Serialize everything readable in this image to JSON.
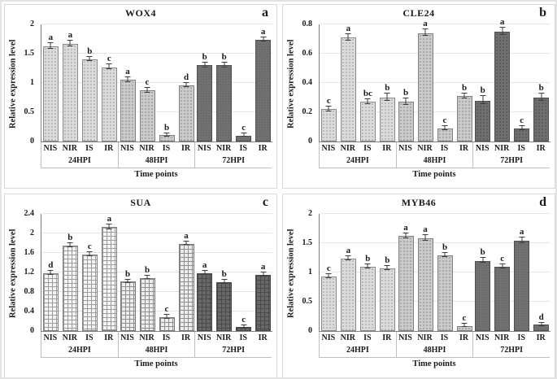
{
  "figure": {
    "xlabel": "Time points",
    "ylabel": "Relative expression level",
    "conditions": [
      "NIS",
      "NIR",
      "IS",
      "IR"
    ],
    "timepoints": [
      "24HPI",
      "48HPI",
      "72HPI"
    ],
    "colors": {
      "light_bar": "#dbdbdb",
      "medium_bar": "#cbcbcb",
      "dark_bar": "#707070",
      "axis": "#808080",
      "gridline": "#e6e6e6",
      "divider": "#bfbfbf",
      "text": "#1a1a1a"
    }
  },
  "chart_data": [
    {
      "type": "bar",
      "panel_letter": "a",
      "title": "WOX4",
      "xlabel": "Time points",
      "ylabel": "Relative expression level",
      "ylim": [
        0,
        2
      ],
      "yticks": [
        "0",
        "0.5",
        "1",
        "1.5",
        "2"
      ],
      "grid": true,
      "conditions": [
        "NIS",
        "NIR",
        "IS",
        "IR"
      ],
      "group_styles": [
        "tex-light-dot",
        "tex-med-dot",
        "tex-dark-solid"
      ],
      "groups": [
        {
          "label": "24HPI",
          "values": [
            1.63,
            1.67,
            1.4,
            1.27
          ],
          "errors": [
            0.04,
            0.04,
            0.03,
            0.03
          ],
          "letters": [
            "a",
            "a",
            "b",
            "c"
          ]
        },
        {
          "label": "48HPI",
          "values": [
            1.05,
            0.87,
            0.11,
            0.96
          ],
          "errors": [
            0.03,
            0.03,
            0.02,
            0.03
          ],
          "letters": [
            "a",
            "c",
            "b",
            "d"
          ]
        },
        {
          "label": "72HPI",
          "values": [
            1.3,
            1.3,
            0.1,
            1.74
          ],
          "errors": [
            0.03,
            0.03,
            0.02,
            0.03
          ],
          "letters": [
            "b",
            "b",
            "c",
            "a"
          ]
        }
      ]
    },
    {
      "type": "bar",
      "panel_letter": "b",
      "title": "CLE24",
      "xlabel": "Time points",
      "ylabel": "Relative expression level",
      "ylim": [
        0,
        0.8
      ],
      "yticks": [
        "0",
        "0.2",
        "0.4",
        "0.6",
        "0.8"
      ],
      "grid": true,
      "conditions": [
        "NIS",
        "NIR",
        "IS",
        "IR"
      ],
      "group_styles": [
        "tex-light-dot",
        "tex-med-dot",
        "tex-dark-dot"
      ],
      "groups": [
        {
          "label": "24HPI",
          "values": [
            0.22,
            0.71,
            0.27,
            0.3
          ],
          "errors": [
            0.015,
            0.02,
            0.015,
            0.02
          ],
          "letters": [
            "c",
            "a",
            "bc",
            "b"
          ]
        },
        {
          "label": "48HPI",
          "values": [
            0.27,
            0.74,
            0.09,
            0.31
          ],
          "errors": [
            0.02,
            0.02,
            0.01,
            0.015
          ],
          "letters": [
            "b",
            "a",
            "c",
            "b"
          ]
        },
        {
          "label": "72HPI",
          "values": [
            0.28,
            0.75,
            0.09,
            0.3
          ],
          "errors": [
            0.025,
            0.02,
            0.01,
            0.02
          ],
          "letters": [
            "b",
            "a",
            "c",
            "b"
          ]
        }
      ]
    },
    {
      "type": "bar",
      "panel_letter": "c",
      "title": "SUA",
      "xlabel": "Time points",
      "ylabel": "Relative expression level",
      "ylim": [
        0,
        2.4
      ],
      "yticks": [
        "0",
        "0.4",
        "0.8",
        "1.2",
        "1.6",
        "2",
        "2.4"
      ],
      "grid": true,
      "conditions": [
        "NIS",
        "NIR",
        "IS",
        "IR"
      ],
      "group_styles": [
        "tex-grid-light",
        "tex-grid-med",
        "tex-grid-dark"
      ],
      "groups": [
        {
          "label": "24HPI",
          "values": [
            1.18,
            1.75,
            1.57,
            2.13
          ],
          "errors": [
            0.03,
            0.04,
            0.03,
            0.04
          ],
          "letters": [
            "d",
            "b",
            "c",
            "a"
          ]
        },
        {
          "label": "48HPI",
          "values": [
            1.01,
            1.09,
            0.28,
            1.79
          ],
          "errors": [
            0.03,
            0.03,
            0.03,
            0.03
          ],
          "letters": [
            "b",
            "b",
            "c",
            "a"
          ]
        },
        {
          "label": "72HPI",
          "values": [
            1.19,
            1.0,
            0.08,
            1.15
          ],
          "errors": [
            0.03,
            0.03,
            0.02,
            0.03
          ],
          "letters": [
            "a",
            "b",
            "c",
            "a"
          ]
        }
      ]
    },
    {
      "type": "bar",
      "panel_letter": "d",
      "title": "MYB46",
      "xlabel": "Time points",
      "ylabel": "Relative expression level",
      "ylim": [
        0,
        2
      ],
      "yticks": [
        "0",
        "0.5",
        "1",
        "1.5",
        "2"
      ],
      "grid": true,
      "conditions": [
        "NIS",
        "NIR",
        "IS",
        "IR"
      ],
      "group_styles": [
        "tex-light-dot",
        "tex-med-dot",
        "tex-dark-solid"
      ],
      "groups": [
        {
          "label": "24HPI",
          "values": [
            0.93,
            1.24,
            1.1,
            1.07
          ],
          "errors": [
            0.03,
            0.03,
            0.03,
            0.03
          ],
          "letters": [
            "c",
            "a",
            "b",
            "b"
          ]
        },
        {
          "label": "48HPI",
          "values": [
            1.62,
            1.58,
            1.29,
            0.09
          ],
          "errors": [
            0.03,
            0.04,
            0.03,
            0.02
          ],
          "letters": [
            "a",
            "a",
            "b",
            "c"
          ]
        },
        {
          "label": "72HPI",
          "values": [
            1.2,
            1.1,
            1.54,
            0.11
          ],
          "errors": [
            0.03,
            0.03,
            0.04,
            0.02
          ],
          "letters": [
            "b",
            "c",
            "a",
            "d"
          ]
        }
      ]
    }
  ]
}
